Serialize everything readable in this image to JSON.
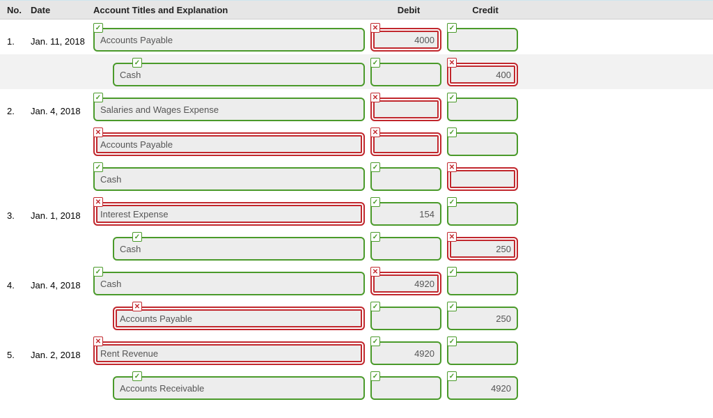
{
  "layout": {
    "columns": {
      "no_width": 44,
      "date_width": 90,
      "acct_width": 398,
      "debit_width": 110,
      "credit_width": 110
    },
    "field_height": 34,
    "field_radius": 6,
    "field_bg": "#ededed",
    "shade_bg": "#f2f2f2",
    "header_bg": "#e6e6e6",
    "correct_color": "#4a9a2a",
    "wrong_color": "#c1272d",
    "font_family": "Arial",
    "font_size": 13
  },
  "header": {
    "no": "No.",
    "date": "Date",
    "acct": "Account Titles and Explanation",
    "debit": "Debit",
    "credit": "Credit"
  },
  "rows": [
    {
      "id": "r1",
      "no": "1.",
      "date": "Jan. 11, 2018",
      "shade": false,
      "indent": false,
      "acct": {
        "value": "Accounts Payable",
        "status": "correct"
      },
      "debit": {
        "value": "4000",
        "status": "wrong"
      },
      "credit": {
        "value": "",
        "status": "correct"
      }
    },
    {
      "id": "r2",
      "no": "",
      "date": "",
      "shade": true,
      "indent": true,
      "acct": {
        "value": "Cash",
        "status": "correct"
      },
      "debit": {
        "value": "",
        "status": "correct"
      },
      "credit": {
        "value": "400",
        "status": "wrong"
      }
    },
    {
      "id": "r3",
      "no": "2.",
      "date": "Jan. 4, 2018",
      "shade": false,
      "indent": false,
      "acct": {
        "value": "Salaries and Wages Expense",
        "status": "correct"
      },
      "debit": {
        "value": "",
        "status": "wrong"
      },
      "credit": {
        "value": "",
        "status": "correct"
      }
    },
    {
      "id": "r4",
      "no": "",
      "date": "",
      "shade": false,
      "indent": false,
      "acct": {
        "value": "Accounts Payable",
        "status": "wrong"
      },
      "debit": {
        "value": "",
        "status": "wrong"
      },
      "credit": {
        "value": "",
        "status": "correct"
      }
    },
    {
      "id": "r5",
      "no": "",
      "date": "",
      "shade": false,
      "indent": false,
      "acct": {
        "value": "Cash",
        "status": "correct"
      },
      "debit": {
        "value": "",
        "status": "correct"
      },
      "credit": {
        "value": "",
        "status": "wrong"
      }
    },
    {
      "id": "r6",
      "no": "3.",
      "date": "Jan. 1, 2018",
      "shade": false,
      "indent": false,
      "acct": {
        "value": "Interest Expense",
        "status": "wrong"
      },
      "debit": {
        "value": "154",
        "status": "correct"
      },
      "credit": {
        "value": "",
        "status": "correct"
      }
    },
    {
      "id": "r7",
      "no": "",
      "date": "",
      "shade": false,
      "indent": true,
      "acct": {
        "value": "Cash",
        "status": "correct"
      },
      "debit": {
        "value": "",
        "status": "correct"
      },
      "credit": {
        "value": "250",
        "status": "wrong"
      }
    },
    {
      "id": "r8",
      "no": "4.",
      "date": "Jan. 4, 2018",
      "shade": false,
      "indent": false,
      "acct": {
        "value": "Cash",
        "status": "correct"
      },
      "debit": {
        "value": "4920",
        "status": "wrong"
      },
      "credit": {
        "value": "",
        "status": "correct"
      }
    },
    {
      "id": "r9",
      "no": "",
      "date": "",
      "shade": false,
      "indent": true,
      "acct": {
        "value": "Accounts Payable",
        "status": "wrong"
      },
      "debit": {
        "value": "",
        "status": "correct"
      },
      "credit": {
        "value": "250",
        "status": "correct"
      }
    },
    {
      "id": "r10",
      "no": "5.",
      "date": "Jan. 2, 2018",
      "shade": false,
      "indent": false,
      "acct": {
        "value": "Rent Revenue",
        "status": "wrong"
      },
      "debit": {
        "value": "4920",
        "status": "correct"
      },
      "credit": {
        "value": "",
        "status": "correct"
      }
    },
    {
      "id": "r11",
      "no": "",
      "date": "",
      "shade": false,
      "indent": true,
      "acct": {
        "value": "Accounts Receivable",
        "status": "correct"
      },
      "debit": {
        "value": "",
        "status": "correct"
      },
      "credit": {
        "value": "4920",
        "status": "correct"
      }
    }
  ]
}
